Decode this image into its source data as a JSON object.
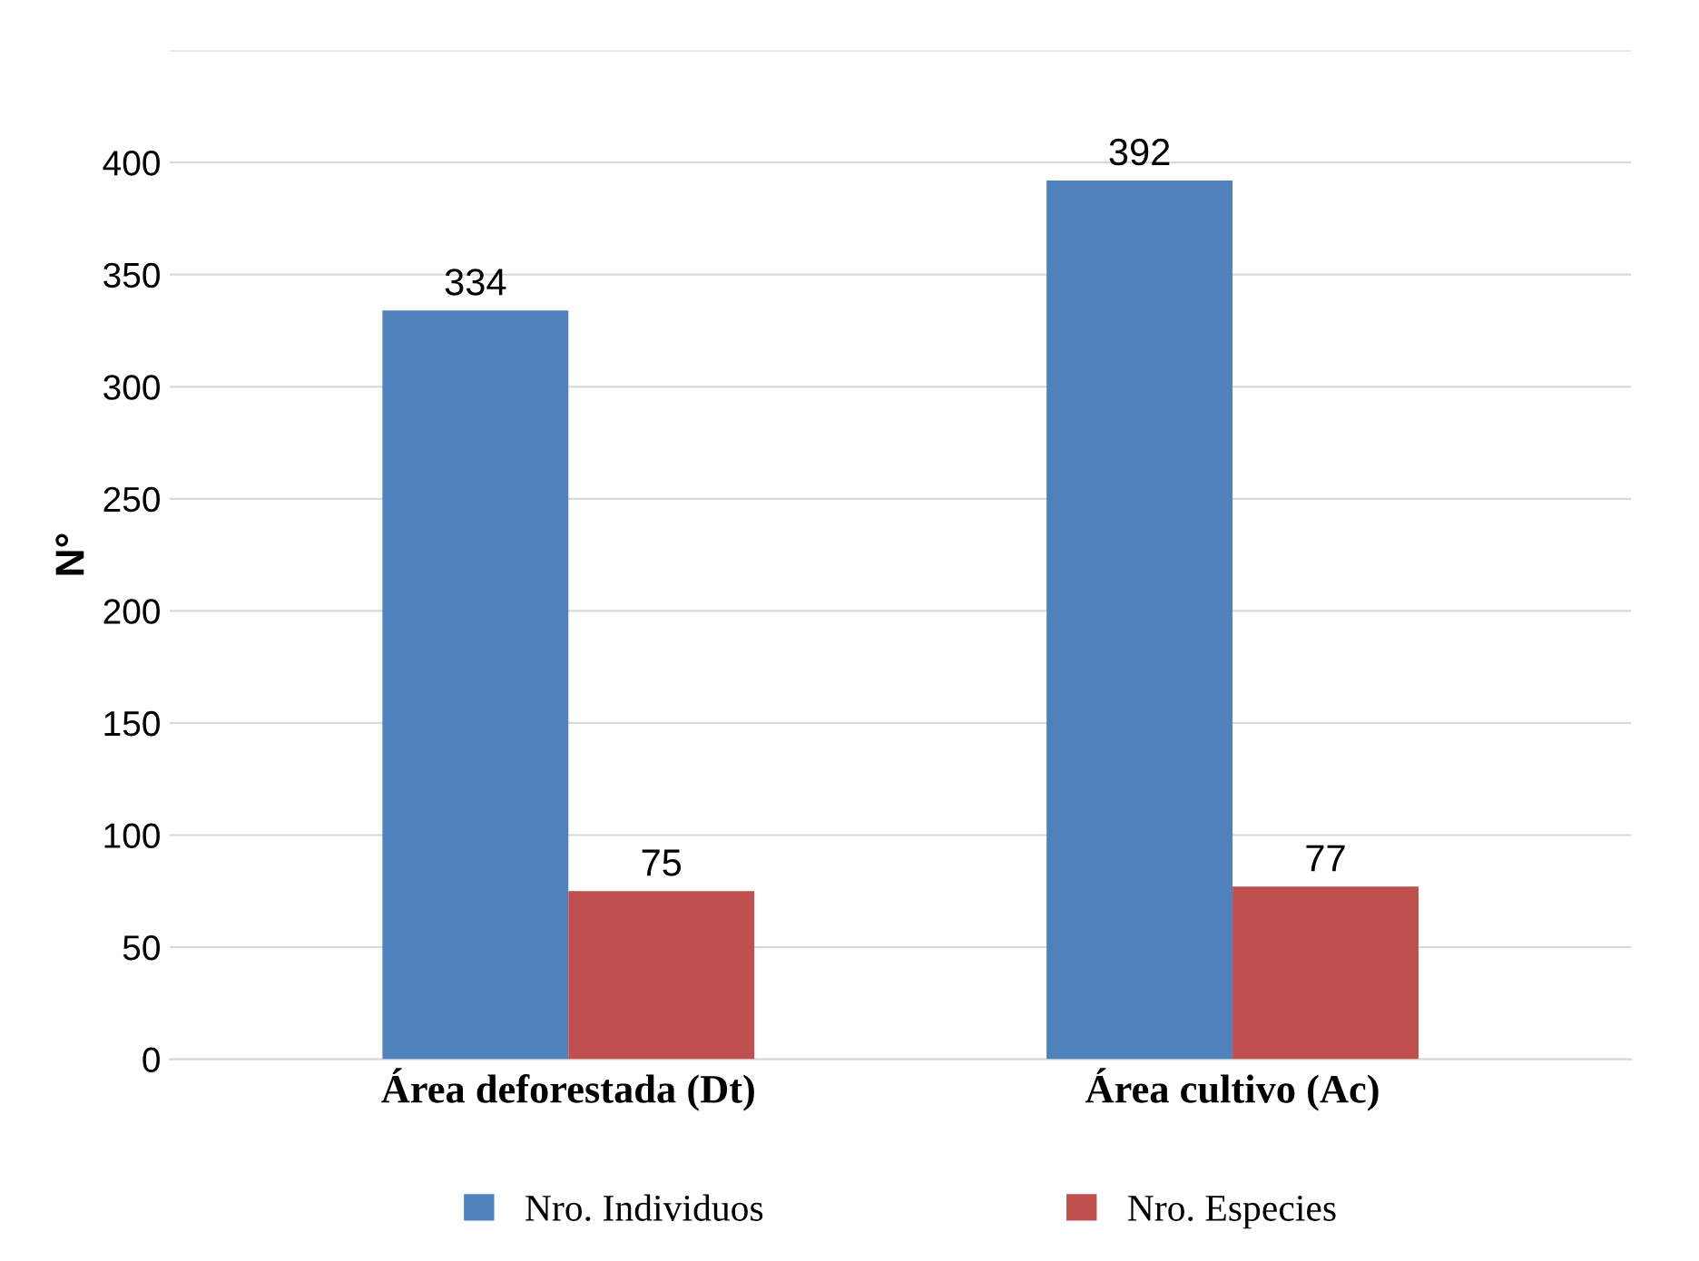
{
  "chart_data": {
    "type": "bar",
    "ylabel": "N°",
    "categories": [
      "Área deforestada (Dt)",
      "Área cultivo (Ac)"
    ],
    "series": [
      {
        "name": "Nro. Individuos",
        "color": "#4f81bd",
        "values": [
          334,
          392
        ]
      },
      {
        "name": "Nro. Especies",
        "color": "#c0504d",
        "values": [
          75,
          77
        ]
      }
    ],
    "ylim": [
      0,
      450
    ],
    "yticks": [
      0,
      50,
      100,
      150,
      200,
      250,
      300,
      350,
      400,
      {
        "value": 450,
        "label": null
      }
    ],
    "grid": "y",
    "legend": "bottom",
    "data_labels": true
  }
}
